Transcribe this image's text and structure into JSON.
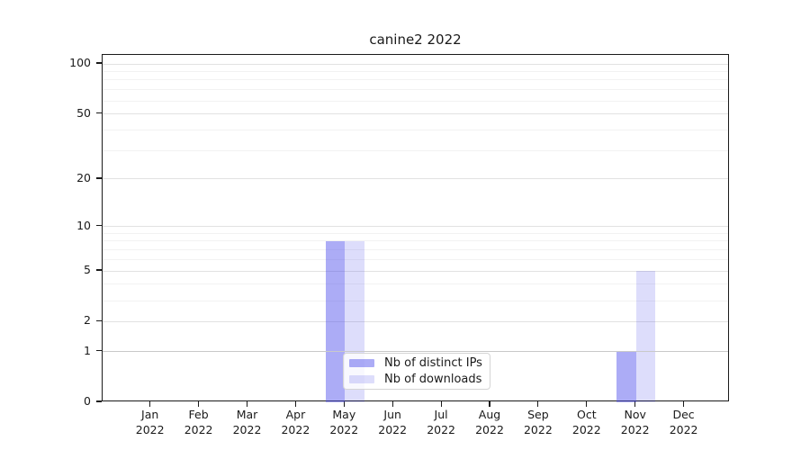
{
  "title": "canine2 2022",
  "chart_data": {
    "type": "bar",
    "title": "canine2 2022",
    "categories": [
      "Jan",
      "Feb",
      "Mar",
      "Apr",
      "May",
      "Jun",
      "Jul",
      "Aug",
      "Sep",
      "Oct",
      "Nov",
      "Dec"
    ],
    "category_year": "2022",
    "series": [
      {
        "name": "Nb of distinct IPs",
        "color": "rgba(75,75,235,0.46)",
        "values": [
          0,
          0,
          0,
          0,
          8,
          0,
          0,
          0,
          0,
          0,
          1,
          0
        ]
      },
      {
        "name": "Nb of downloads",
        "color": "rgba(75,75,235,0.19)",
        "values": [
          0,
          0,
          0,
          0,
          8,
          0,
          0,
          0,
          0,
          0,
          5,
          0
        ]
      }
    ],
    "yscale": "log1p",
    "ylim": [
      0,
      113
    ],
    "yticks": [
      100,
      50,
      20,
      10,
      5,
      2,
      1,
      0
    ],
    "minor_yticks": [
      3,
      4,
      6,
      7,
      8,
      9,
      30,
      40,
      60,
      70,
      80,
      90
    ],
    "emphasized_gridline_value": 1,
    "grid": "horizontal",
    "legend_position": "lower center"
  },
  "colors": {
    "bar_distinct_ips": "rgba(75,75,235,0.46)",
    "bar_downloads": "rgba(75,75,235,0.19)",
    "axis": "#1a1a1a",
    "grid_major": "#e2e2e2",
    "grid_minor": "#f2f2f2",
    "grid_emphasized": "#c9c9c9",
    "background": "#ffffff"
  }
}
